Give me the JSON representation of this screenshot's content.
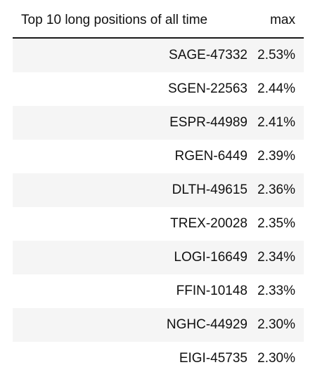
{
  "table": {
    "headers": {
      "name": "Top 10 long positions of all time",
      "max": "max"
    },
    "rows": [
      {
        "name": "SAGE-47332",
        "max": "2.53%"
      },
      {
        "name": "SGEN-22563",
        "max": "2.44%"
      },
      {
        "name": "ESPR-44989",
        "max": "2.41%"
      },
      {
        "name": "RGEN-6449",
        "max": "2.39%"
      },
      {
        "name": "DLTH-49615",
        "max": "2.36%"
      },
      {
        "name": "TREX-20028",
        "max": "2.35%"
      },
      {
        "name": "LOGI-16649",
        "max": "2.34%"
      },
      {
        "name": "FFIN-10148",
        "max": "2.33%"
      },
      {
        "name": "NGHC-44929",
        "max": "2.30%"
      },
      {
        "name": "EIGI-45735",
        "max": "2.30%"
      }
    ]
  },
  "colors": {
    "stripe": "#f5f5f5",
    "text": "#111111",
    "rule": "#1a1a1a"
  }
}
